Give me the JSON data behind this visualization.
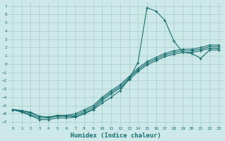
{
  "xlabel": "Humidex (Indice chaleur)",
  "xlim": [
    -0.5,
    23.5
  ],
  "ylim": [
    -7.5,
    7.5
  ],
  "bg_color": "#cce8e8",
  "grid_color": "#aacccc",
  "line_color": "#1a7070",
  "x": [
    0,
    1,
    2,
    3,
    4,
    5,
    6,
    7,
    8,
    9,
    10,
    11,
    12,
    13,
    14,
    15,
    16,
    17,
    18,
    19,
    20,
    21,
    22,
    23
  ],
  "line1": [
    -5.5,
    -5.6,
    -5.8,
    -6.3,
    -6.4,
    -6.2,
    -6.2,
    -6.4,
    -6.0,
    -5.5,
    -4.7,
    -4.0,
    -3.2,
    -1.8,
    0.2,
    6.8,
    6.4,
    5.3,
    2.8,
    1.4,
    1.3,
    0.7,
    1.7,
    1.7
  ],
  "line2": [
    -5.5,
    -5.6,
    -5.9,
    -6.3,
    -6.4,
    -6.2,
    -6.2,
    -6.0,
    -5.5,
    -5.0,
    -4.0,
    -3.2,
    -2.5,
    -1.5,
    -0.5,
    0.3,
    0.8,
    1.3,
    1.6,
    1.8,
    1.8,
    2.0,
    2.3,
    2.3
  ],
  "line3": [
    -5.5,
    -5.7,
    -6.1,
    -6.5,
    -6.5,
    -6.3,
    -6.3,
    -6.2,
    -5.7,
    -5.2,
    -4.2,
    -3.4,
    -2.7,
    -1.7,
    -0.7,
    0.1,
    0.6,
    1.1,
    1.4,
    1.6,
    1.6,
    1.8,
    2.1,
    2.1
  ],
  "line4": [
    -5.5,
    -5.8,
    -6.2,
    -6.7,
    -6.7,
    -6.5,
    -6.5,
    -6.4,
    -5.9,
    -5.4,
    -4.4,
    -3.6,
    -2.9,
    -1.9,
    -0.9,
    -0.1,
    0.4,
    0.9,
    1.2,
    1.4,
    1.4,
    1.6,
    1.9,
    1.9
  ]
}
